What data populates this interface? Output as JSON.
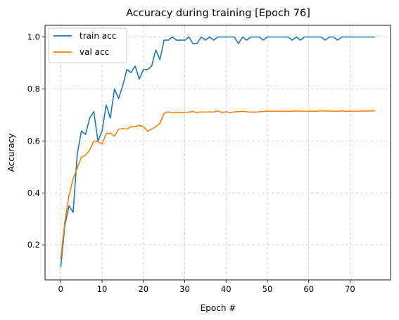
{
  "chart_data": {
    "type": "line",
    "title": "Accuracy during training [Epoch 76]",
    "xlabel": "Epoch #",
    "ylabel": "Accuracy",
    "xlim": [
      -3.8,
      79.8
    ],
    "ylim": [
      0.065,
      1.045
    ],
    "xticks": [
      0,
      10,
      20,
      30,
      40,
      50,
      60,
      70
    ],
    "yticks": [
      0.2,
      0.4,
      0.6,
      0.8,
      1.0
    ],
    "ytick_labels": [
      "0.2",
      "0.4",
      "0.6",
      "0.8",
      "1.0"
    ],
    "grid": true,
    "legend_position": "top-left",
    "x": [
      0,
      1,
      2,
      3,
      4,
      5,
      6,
      7,
      8,
      9,
      10,
      11,
      12,
      13,
      14,
      15,
      16,
      17,
      18,
      19,
      20,
      21,
      22,
      23,
      24,
      25,
      26,
      27,
      28,
      29,
      30,
      31,
      32,
      33,
      34,
      35,
      36,
      37,
      38,
      39,
      40,
      41,
      42,
      43,
      44,
      45,
      46,
      47,
      48,
      49,
      50,
      51,
      52,
      53,
      54,
      55,
      56,
      57,
      58,
      59,
      60,
      61,
      62,
      63,
      64,
      65,
      66,
      67,
      68,
      69,
      70,
      71,
      72,
      73,
      74,
      75,
      76
    ],
    "series": [
      {
        "name": "train acc",
        "color": "#1f77b4",
        "values": [
          0.113,
          0.275,
          0.35,
          0.325,
          0.55,
          0.638,
          0.625,
          0.688,
          0.713,
          0.6,
          0.638,
          0.738,
          0.688,
          0.8,
          0.763,
          0.813,
          0.875,
          0.863,
          0.888,
          0.838,
          0.875,
          0.875,
          0.888,
          0.95,
          0.913,
          0.988,
          0.988,
          1.0,
          0.988,
          0.988,
          0.988,
          1.0,
          0.975,
          0.975,
          1.0,
          0.988,
          1.0,
          0.988,
          1.0,
          1.0,
          1.0,
          1.0,
          1.0,
          0.975,
          1.0,
          0.988,
          1.0,
          1.0,
          1.0,
          0.988,
          1.0,
          1.0,
          1.0,
          1.0,
          1.0,
          1.0,
          0.988,
          1.0,
          0.988,
          1.0,
          1.0,
          1.0,
          1.0,
          1.0,
          0.988,
          1.0,
          1.0,
          0.988,
          1.0,
          1.0,
          1.0,
          1.0,
          1.0,
          1.0,
          1.0,
          1.0,
          1.0
        ]
      },
      {
        "name": "val acc",
        "color": "#ff7f0e",
        "values": [
          0.145,
          0.29,
          0.39,
          0.455,
          0.495,
          0.538,
          0.545,
          0.565,
          0.6,
          0.597,
          0.588,
          0.628,
          0.63,
          0.618,
          0.645,
          0.648,
          0.645,
          0.655,
          0.655,
          0.66,
          0.655,
          0.637,
          0.645,
          0.655,
          0.668,
          0.706,
          0.712,
          0.709,
          0.709,
          0.709,
          0.71,
          0.711,
          0.713,
          0.709,
          0.712,
          0.711,
          0.712,
          0.711,
          0.716,
          0.709,
          0.712,
          0.709,
          0.712,
          0.713,
          0.714,
          0.712,
          0.711,
          0.711,
          0.712,
          0.713,
          0.715,
          0.714,
          0.715,
          0.714,
          0.714,
          0.714,
          0.715,
          0.715,
          0.715,
          0.714,
          0.714,
          0.715,
          0.714,
          0.716,
          0.715,
          0.715,
          0.715,
          0.714,
          0.716,
          0.714,
          0.715,
          0.714,
          0.715,
          0.715,
          0.715,
          0.716,
          0.715
        ]
      }
    ]
  }
}
